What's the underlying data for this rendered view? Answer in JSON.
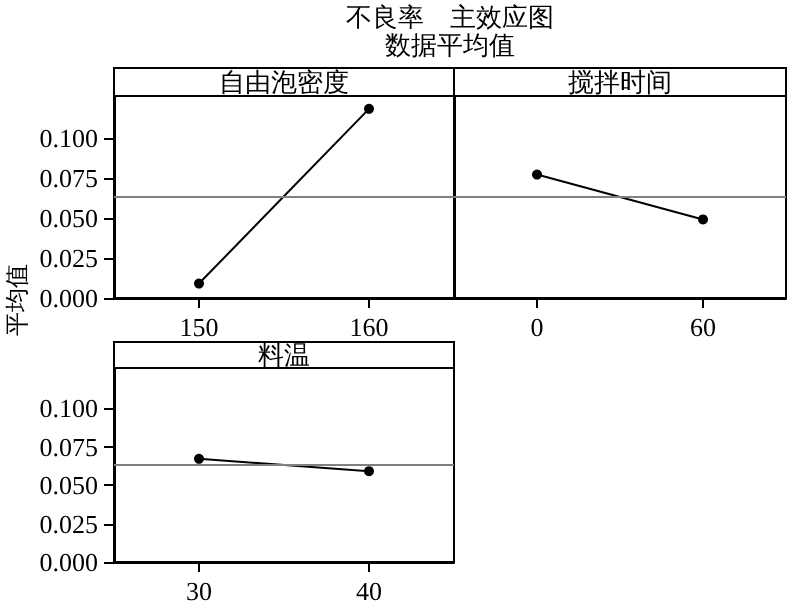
{
  "chart_data": [
    {
      "type": "line",
      "title": "不良率　主效应图",
      "subtitle": "数据平均值",
      "xlabel": "自由泡密度",
      "ylabel": "平均值",
      "categories": [
        "150",
        "160"
      ],
      "values": [
        0.009,
        0.118
      ],
      "color": "#000000",
      "marker": "circle",
      "line_style": "solid",
      "ylim": [
        0,
        0.126
      ],
      "yticks": [
        {
          "value": 0,
          "label": "0.000"
        },
        {
          "value": 0.025,
          "label": "0.025"
        },
        {
          "value": 0.05,
          "label": "0.050"
        },
        {
          "value": 0.075,
          "label": "0.075"
        },
        {
          "value": 0.1,
          "label": "0.100"
        }
      ],
      "ref_lines": [
        {
          "axis": "y",
          "value": 0.0635,
          "color": "#808080"
        }
      ],
      "grid": false
    },
    {
      "type": "line",
      "xlabel": "搅拌时间",
      "categories": [
        "0",
        "60"
      ],
      "values": [
        0.077,
        0.049
      ],
      "color": "#000000",
      "marker": "circle",
      "line_style": "solid",
      "ylim": [
        0,
        0.126
      ],
      "ref_lines": [
        {
          "axis": "y",
          "value": 0.0635,
          "color": "#808080"
        }
      ],
      "tick_labels": "x",
      "grid": false
    },
    {
      "type": "line",
      "xlabel": "料温",
      "categories": [
        "30",
        "40"
      ],
      "values": [
        0.067,
        0.059
      ],
      "color": "#000000",
      "marker": "circle",
      "line_style": "solid",
      "ylim": [
        0,
        0.126
      ],
      "yticks": [
        {
          "value": 0,
          "label": "0.000"
        },
        {
          "value": 0.025,
          "label": "0.025"
        },
        {
          "value": 0.05,
          "label": "0.050"
        },
        {
          "value": 0.075,
          "label": "0.075"
        },
        {
          "value": 0.1,
          "label": "0.100"
        }
      ],
      "ref_lines": [
        {
          "axis": "y",
          "value": 0.0635,
          "color": "#808080"
        }
      ],
      "grid": false
    }
  ]
}
